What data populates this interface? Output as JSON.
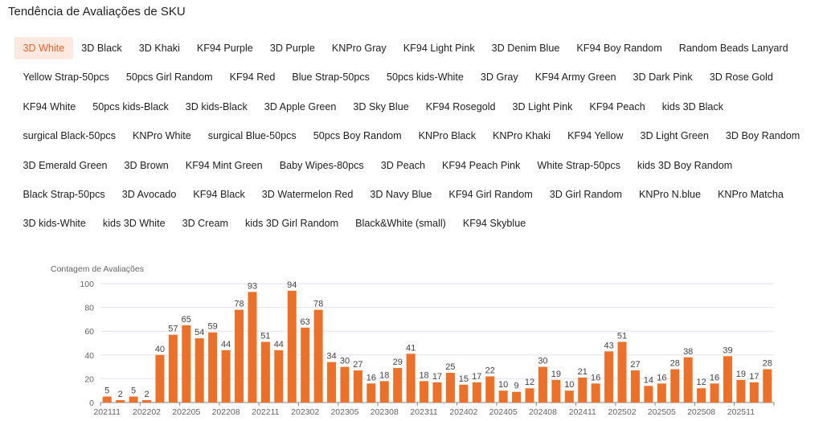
{
  "title": "Tendência de Avaliações de SKU",
  "tags": [
    "3D White",
    "3D Black",
    "3D Khaki",
    "KF94 Purple",
    "3D Purple",
    "KNPro Gray",
    "KF94 Light Pink",
    "3D Denim Blue",
    "KF94 Boy Random",
    "Random Beads Lanyard",
    "Yellow Strap-50pcs",
    "50pcs Girl Random",
    "KF94 Red",
    "Blue Strap-50pcs",
    "50pcs kids-White",
    "3D Gray",
    "KF94 Army Green",
    "3D Dark Pink",
    "3D Rose Gold",
    "KF94 White",
    "50pcs kids-Black",
    "3D kids-Black",
    "3D Apple Green",
    "3D Sky Blue",
    "KF94 Rosegold",
    "3D Light Pink",
    "KF94 Peach",
    "kids 3D Black",
    "surgical Black-50pcs",
    "KNPro White",
    "surgical Blue-50pcs",
    "50pcs Boy Random",
    "KNPro Black",
    "KNPro Khaki",
    "KF94 Yellow",
    "3D Light Green",
    "3D Boy Random",
    "3D Emerald Green",
    "3D Brown",
    "KF94 Mint Green",
    "Baby Wipes-80pcs",
    "3D Peach",
    "KF94 Peach Pink",
    "White Strap-50pcs",
    "kids 3D Boy Random",
    "Black Strap-50pcs",
    "3D Avocado",
    "KF94 Black",
    "3D Watermelon Red",
    "3D Navy Blue",
    "KF94 Girl Random",
    "3D Girl Random",
    "KNPro N.blue",
    "KNPro Matcha",
    "3D kids-White",
    "kids 3D White",
    "3D Cream",
    "kids 3D Girl Random",
    "Black&White (small)",
    "KF94 Skyblue"
  ],
  "active_tag": "3D White",
  "colors": {
    "accent": "#f2602c",
    "bar": "#eb712b",
    "active_bg": "#fde9e0"
  },
  "chart_data": {
    "type": "bar",
    "ylabel": "Contagem de Avaliações",
    "ylim": [
      0,
      100
    ],
    "yticks": [
      0,
      20,
      40,
      60,
      80,
      100
    ],
    "grid": true,
    "categories": [
      "202111",
      "202112",
      "202201",
      "202202",
      "202203",
      "202204",
      "202205",
      "202206",
      "202207",
      "202208",
      "202209",
      "202210",
      "202211",
      "202212",
      "202301",
      "202302",
      "202303",
      "202304",
      "202305",
      "202306",
      "202307",
      "202308",
      "202309",
      "202310",
      "202311",
      "202312",
      "202401",
      "202402",
      "202403",
      "202404",
      "202405",
      "202406",
      "202407",
      "202408",
      "202409",
      "202410",
      "202411",
      "202412",
      "202501",
      "202502",
      "202503",
      "202504",
      "202505",
      "202506",
      "202507",
      "202508",
      "202509",
      "202510",
      "202511",
      "202512",
      "202601"
    ],
    "xtick_labels": [
      "202111",
      "202202",
      "202205",
      "202208",
      "202211",
      "202302",
      "202305",
      "202308",
      "202311",
      "202402",
      "202405",
      "202408",
      "202411",
      "202502",
      "202505",
      "202508",
      "202511"
    ],
    "values": [
      5,
      2,
      5,
      2,
      40,
      57,
      65,
      54,
      59,
      44,
      78,
      93,
      51,
      44,
      94,
      63,
      78,
      34,
      30,
      27,
      16,
      18,
      29,
      41,
      18,
      17,
      25,
      15,
      17,
      22,
      10,
      9,
      12,
      30,
      19,
      10,
      21,
      16,
      43,
      51,
      27,
      14,
      16,
      28,
      38,
      12,
      16,
      39,
      19,
      17,
      28
    ]
  }
}
